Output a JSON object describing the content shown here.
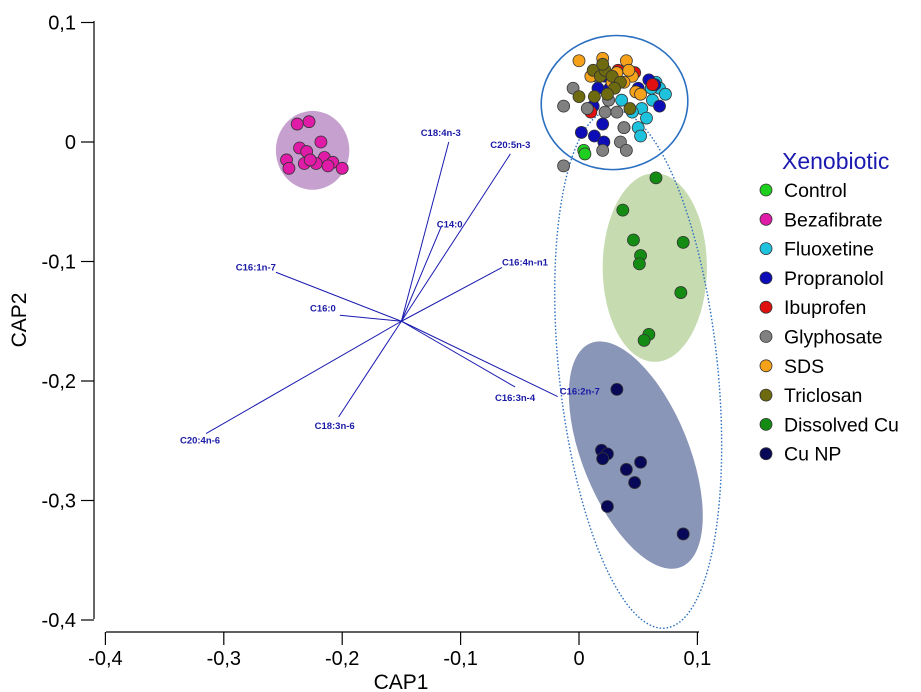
{
  "chart_data": {
    "type": "scatter",
    "xlabel": "CAP1",
    "ylabel": "CAP2",
    "xlim": [
      -0.4,
      0.1
    ],
    "ylim": [
      -0.4,
      0.1
    ],
    "xticks": [
      -0.4,
      -0.3,
      -0.2,
      -0.1,
      0,
      0.1
    ],
    "yticks": [
      0.1,
      0,
      -0.1,
      -0.2,
      -0.3,
      -0.4
    ],
    "xtick_labels": [
      "-0,4",
      "-0,3",
      "-0,2",
      "-0,1",
      "0",
      "0,1"
    ],
    "ytick_labels": [
      "0,1",
      "0",
      "-0,1",
      "-0,2",
      "-0,3",
      "-0,4"
    ],
    "grid": false,
    "legend": {
      "title": "Xenobiotic",
      "placement": "right",
      "entries": [
        {
          "name": "Control",
          "color": "#1fcf1f"
        },
        {
          "name": "Bezafibrate",
          "color": "#e01ba8"
        },
        {
          "name": "Fluoxetine",
          "color": "#1fc2dd"
        },
        {
          "name": "Propranolol",
          "color": "#0d0db8"
        },
        {
          "name": "Ibuprofen",
          "color": "#e01010"
        },
        {
          "name": "Glyphosate",
          "color": "#808080"
        },
        {
          "name": "SDS",
          "color": "#f5a21a"
        },
        {
          "name": "Triclosan",
          "color": "#6e6a10"
        },
        {
          "name": "Dissolved Cu",
          "color": "#148c14"
        },
        {
          "name": "Cu NP",
          "color": "#080858"
        }
      ]
    },
    "series": [
      {
        "name": "Bezafibrate",
        "color": "#e01ba8",
        "points": [
          [
            -0.238,
            0.015
          ],
          [
            -0.228,
            0.017
          ],
          [
            -0.218,
            0.0
          ],
          [
            -0.247,
            -0.015
          ],
          [
            -0.236,
            -0.005
          ],
          [
            -0.23,
            -0.008
          ],
          [
            -0.215,
            -0.013
          ],
          [
            -0.222,
            -0.018
          ],
          [
            -0.208,
            -0.017
          ],
          [
            -0.232,
            -0.018
          ],
          [
            -0.2,
            -0.022
          ],
          [
            -0.245,
            -0.022
          ],
          [
            -0.227,
            -0.015
          ],
          [
            -0.212,
            -0.02
          ]
        ]
      },
      {
        "name": "Control",
        "color": "#1fcf1f",
        "points": [
          [
            0.004,
            -0.007
          ],
          [
            0.005,
            -0.01
          ]
        ]
      },
      {
        "name": "Fluoxetine",
        "color": "#1fc2dd",
        "points": [
          [
            0.065,
            0.05
          ],
          [
            0.068,
            0.045
          ],
          [
            0.073,
            0.04
          ],
          [
            0.062,
            0.035
          ],
          [
            0.053,
            0.028
          ],
          [
            0.057,
            0.02
          ],
          [
            0.05,
            0.012
          ],
          [
            0.052,
            0.005
          ],
          [
            0.038,
            0.012
          ],
          [
            0.045,
            0.025
          ],
          [
            0.036,
            0.035
          ],
          [
            0.061,
            0.045
          ]
        ]
      },
      {
        "name": "Propranolol",
        "color": "#0d0db8",
        "points": [
          [
            0.022,
            0.055
          ],
          [
            0.059,
            0.052
          ],
          [
            0.064,
            0.048
          ],
          [
            0.068,
            0.03
          ],
          [
            0.016,
            0.045
          ],
          [
            0.012,
            0.03
          ],
          [
            0.02,
            0.015
          ],
          [
            0.002,
            0.008
          ],
          [
            0.013,
            0.005
          ],
          [
            0.021,
            0.0
          ],
          [
            0.05,
            0.045
          ],
          [
            0.026,
            0.045
          ]
        ]
      },
      {
        "name": "Ibuprofen",
        "color": "#e01010",
        "points": [
          [
            0.047,
            0.058
          ],
          [
            0.062,
            0.048
          ],
          [
            0.01,
            0.025
          ],
          [
            0.033,
            0.06
          ]
        ]
      },
      {
        "name": "Glyphosate",
        "color": "#808080",
        "points": [
          [
            -0.013,
            0.03
          ],
          [
            -0.005,
            0.045
          ],
          [
            0.022,
            0.025
          ],
          [
            0.025,
            0.035
          ],
          [
            0.032,
            0.025
          ],
          [
            0.038,
            0.012
          ],
          [
            0.035,
            0.0
          ],
          [
            0.02,
            -0.007
          ],
          [
            0.04,
            -0.007
          ],
          [
            -0.013,
            -0.02
          ],
          [
            0.007,
            0.028
          ],
          [
            0.015,
            0.055
          ]
        ]
      },
      {
        "name": "SDS",
        "color": "#f5a21a",
        "points": [
          [
            0.0,
            0.068
          ],
          [
            0.02,
            0.07
          ],
          [
            0.04,
            0.068
          ],
          [
            0.032,
            0.058
          ],
          [
            0.045,
            0.055
          ],
          [
            0.038,
            0.05
          ],
          [
            0.048,
            0.042
          ],
          [
            0.028,
            0.05
          ],
          [
            0.052,
            0.04
          ],
          [
            0.01,
            0.055
          ],
          [
            0.042,
            0.06
          ]
        ]
      },
      {
        "name": "Triclosan",
        "color": "#6e6a10",
        "points": [
          [
            0.012,
            0.06
          ],
          [
            0.018,
            0.055
          ],
          [
            0.022,
            0.06
          ],
          [
            0.028,
            0.055
          ],
          [
            0.035,
            0.05
          ],
          [
            0.0,
            0.038
          ],
          [
            0.013,
            0.038
          ],
          [
            0.03,
            0.045
          ],
          [
            0.043,
            0.028
          ],
          [
            0.02,
            0.065
          ],
          [
            0.024,
            0.04
          ]
        ]
      },
      {
        "name": "Dissolved Cu",
        "color": "#148c14",
        "points": [
          [
            0.065,
            -0.03
          ],
          [
            0.037,
            -0.057
          ],
          [
            0.046,
            -0.082
          ],
          [
            0.088,
            -0.084
          ],
          [
            0.052,
            -0.095
          ],
          [
            0.051,
            -0.102
          ],
          [
            0.086,
            -0.126
          ],
          [
            0.059,
            -0.161
          ],
          [
            0.055,
            -0.166
          ]
        ]
      },
      {
        "name": "Cu NP",
        "color": "#080858",
        "points": [
          [
            0.032,
            -0.207
          ],
          [
            0.019,
            -0.258
          ],
          [
            0.024,
            -0.261
          ],
          [
            0.02,
            -0.265
          ],
          [
            0.052,
            -0.268
          ],
          [
            0.04,
            -0.274
          ],
          [
            0.047,
            -0.285
          ],
          [
            0.024,
            -0.305
          ],
          [
            0.088,
            -0.328
          ]
        ]
      }
    ],
    "vectors": {
      "origin": [
        -0.15,
        -0.15
      ],
      "items": [
        {
          "label": "C18:4n-3",
          "end": [
            -0.11,
            0.0
          ]
        },
        {
          "label": "C20:5n-3",
          "end": [
            -0.058,
            -0.01
          ]
        },
        {
          "label": "C14:0",
          "end": [
            -0.116,
            -0.07
          ]
        },
        {
          "label": "C16:4n-n1",
          "end": [
            -0.065,
            -0.105
          ]
        },
        {
          "label": "C16:1n-7",
          "end": [
            -0.256,
            -0.109
          ]
        },
        {
          "label": "C16:0",
          "end": [
            -0.202,
            -0.145
          ]
        },
        {
          "label": "C16:2n-7",
          "end": [
            -0.018,
            -0.213
          ]
        },
        {
          "label": "C16:3n-4",
          "end": [
            -0.054,
            -0.205
          ]
        },
        {
          "label": "C18:3n-6",
          "end": [
            -0.203,
            -0.23
          ]
        },
        {
          "label": "C20:4n-6",
          "end": [
            -0.315,
            -0.244
          ]
        }
      ]
    },
    "group_ellipses": [
      {
        "group": "Bezafibrate",
        "style": "filled",
        "color": "#c6a0ce",
        "center": [
          -0.225,
          -0.007
        ],
        "radii": [
          0.031,
          0.033
        ],
        "angle_deg": 0
      },
      {
        "group": "SDS, Ibuprofen, Control, Fluoxetine, Propranolol, Glyphosate, Triclosan",
        "style": "outline",
        "color": "#2a6fc0",
        "center": [
          0.03,
          0.033
        ],
        "radii": [
          0.062,
          0.056
        ],
        "angle_deg": -8
      },
      {
        "group": "Dissolved Cu",
        "style": "filled",
        "color": "#c6dbb0",
        "center": [
          0.064,
          -0.105
        ],
        "radii": [
          0.044,
          0.079
        ],
        "angle_deg": 0
      },
      {
        "group": "Cu NP",
        "style": "filled",
        "color": "#8a96b8",
        "center": [
          0.048,
          -0.262
        ],
        "radii": [
          0.045,
          0.101
        ],
        "angle_deg": -22
      },
      {
        "group": "Dissolved Cu, Cu NP",
        "style": "dotted",
        "color": "#2a6fc0",
        "center": [
          0.05,
          -0.19
        ],
        "radii": [
          0.067,
          0.218
        ],
        "angle_deg": -6
      }
    ]
  }
}
